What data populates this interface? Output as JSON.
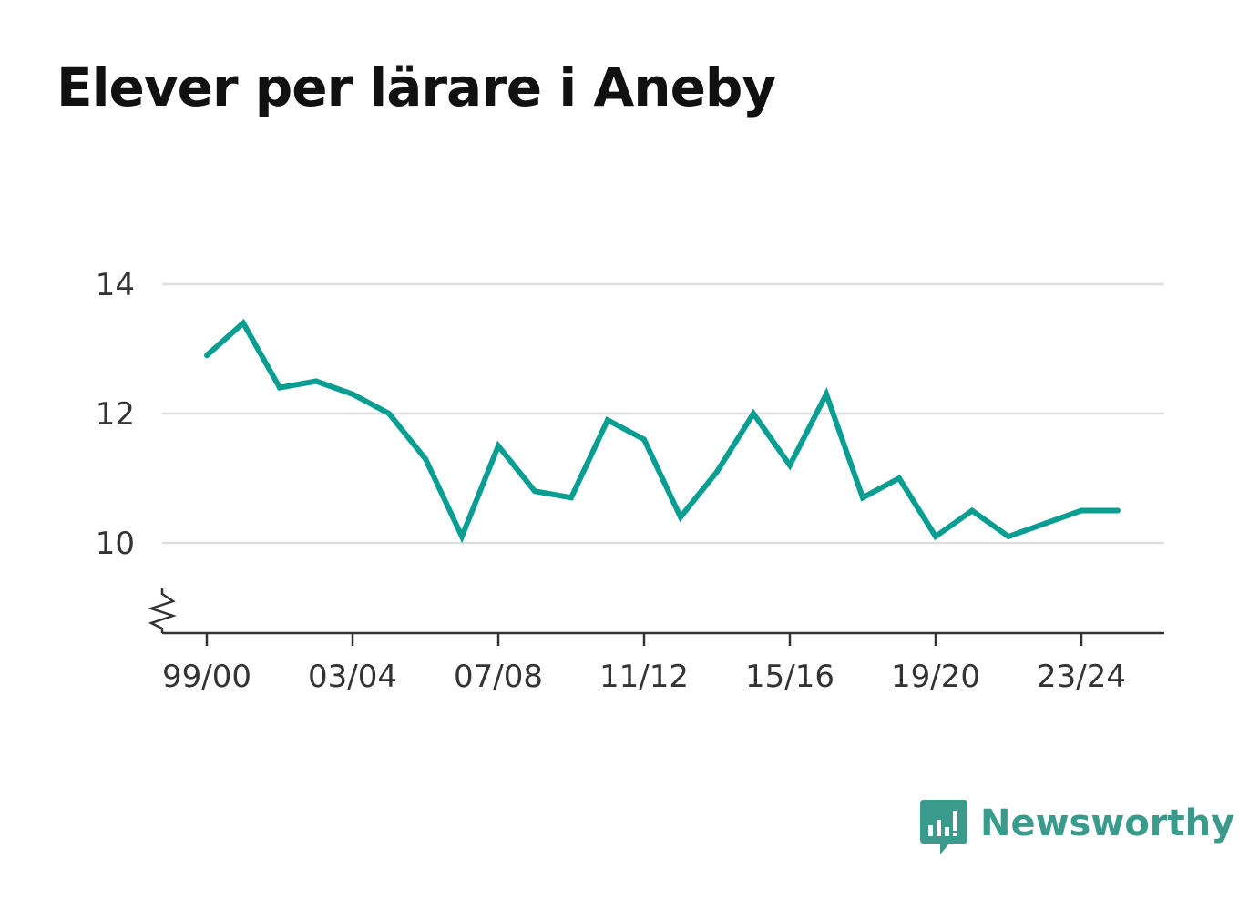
{
  "title": "Elever per lärare i Aneby",
  "brand": {
    "name": "Newsworthy",
    "icon": "newsworthy-logo-icon",
    "color": "#3a9a8b"
  },
  "colors": {
    "line": "#0a9e93",
    "grid": "#dddddd",
    "axis": "#333333",
    "text": "#333333"
  },
  "chart_data": {
    "type": "line",
    "title": "Elever per lärare i Aneby",
    "xlabel": "",
    "ylabel": "",
    "x": [
      "99/00",
      "00/01",
      "01/02",
      "02/03",
      "03/04",
      "04/05",
      "05/06",
      "06/07",
      "07/08",
      "08/09",
      "09/10",
      "10/11",
      "11/12",
      "12/13",
      "13/14",
      "14/15",
      "15/16",
      "16/17",
      "17/18",
      "18/19",
      "19/20",
      "20/21",
      "21/22",
      "22/23",
      "23/24",
      "24/25"
    ],
    "x_tick_labels": [
      "99/00",
      "03/04",
      "07/08",
      "11/12",
      "15/16",
      "19/20",
      "23/24"
    ],
    "y_tick_labels": [
      "14",
      "12",
      "10"
    ],
    "y_ticks": [
      14,
      12,
      10
    ],
    "ylim": [
      8.6,
      14
    ],
    "axis_break": true,
    "grid": true,
    "series": [
      {
        "values": [
          12.9,
          13.4,
          12.4,
          12.5,
          12.3,
          12.0,
          11.3,
          10.1,
          11.5,
          10.8,
          10.7,
          11.9,
          11.6,
          10.4,
          11.1,
          12.0,
          11.2,
          12.3,
          10.7,
          11.0,
          10.1,
          10.5,
          10.1,
          10.3,
          10.5,
          10.5
        ]
      }
    ]
  }
}
